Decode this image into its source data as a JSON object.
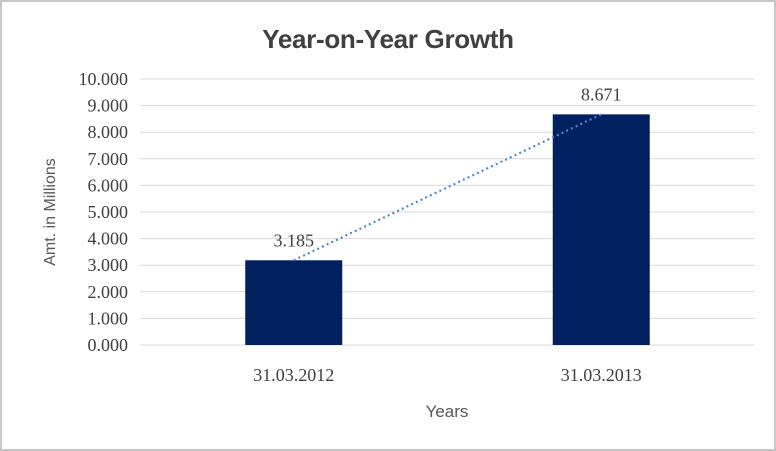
{
  "chart_data": {
    "type": "bar",
    "title": "Year-on-Year Growth",
    "xlabel": "Years",
    "ylabel": "Amt. in Millions",
    "categories": [
      "31.03.2012",
      "31.03.2013"
    ],
    "values": [
      3.185,
      8.671
    ],
    "value_labels": [
      "3.185",
      "8.671"
    ],
    "ylim": [
      0,
      10
    ],
    "ytick_step": 1,
    "ytick_labels": [
      "0.000",
      "1.000",
      "2.000",
      "3.000",
      "4.000",
      "5.000",
      "6.000",
      "7.000",
      "8.000",
      "9.000",
      "10.000"
    ],
    "grid": true,
    "legend": false,
    "trendline": {
      "present": true,
      "style": "dotted",
      "color": "#4d87cd",
      "connects_values": [
        3.185,
        8.671
      ]
    },
    "colors": {
      "bar": "#002060",
      "gridline": "#d9d9d9",
      "tick_label": "#3f3f3f",
      "data_label": "#3f3f3f",
      "axis_title": "#595959",
      "chart_title": "#404040",
      "frame_border": "#c6c6c6"
    }
  }
}
